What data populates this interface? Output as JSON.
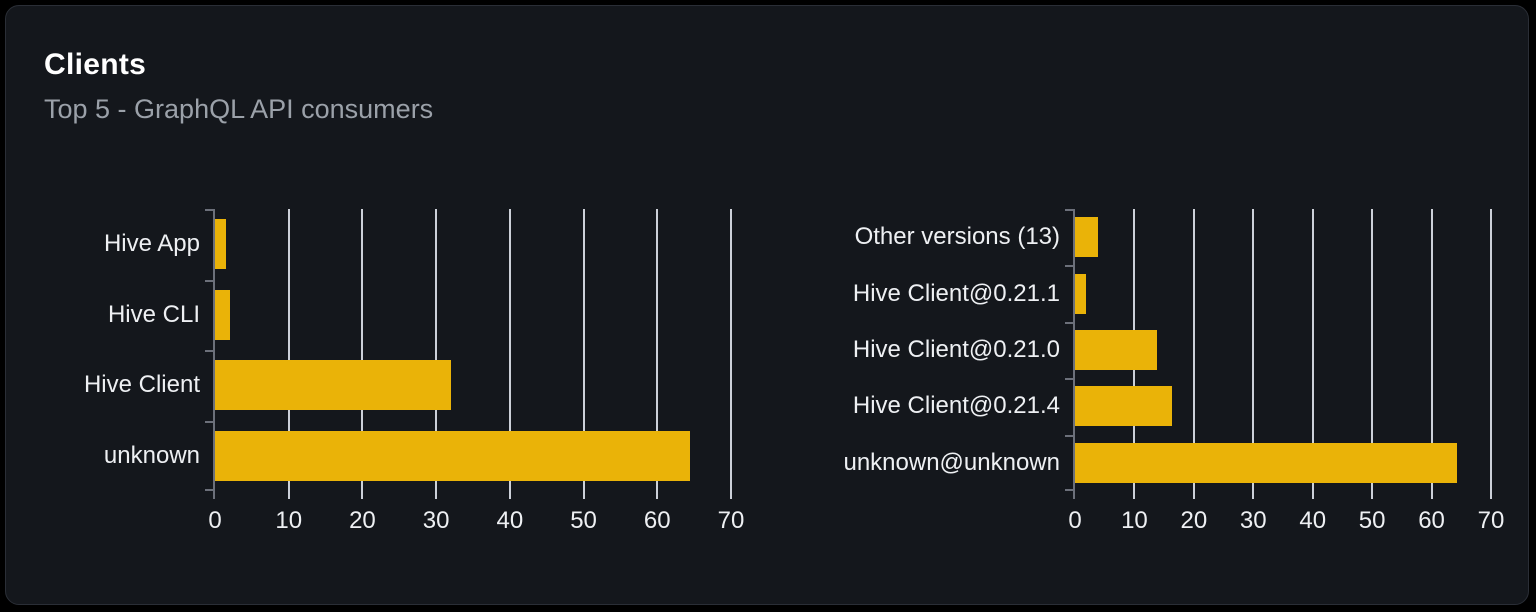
{
  "card": {
    "title": "Clients",
    "subtitle": "Top 5 - GraphQL API consumers"
  },
  "colors": {
    "page_bg": "#000000",
    "card_bg": "#14171c",
    "card_border": "#2a2e36",
    "bar": "#eab308",
    "gridline": "#ccd0d8",
    "axis": "#6c707a",
    "axis_text": "#eef0f3",
    "title_text": "#ffffff",
    "subtitle_text": "#9ba1a9"
  },
  "chart_data": [
    {
      "type": "bar",
      "orientation": "horizontal",
      "title": "",
      "categories": [
        "Hive App",
        "Hive CLI",
        "Hive Client",
        "unknown"
      ],
      "values": [
        1.5,
        2.1,
        32,
        64.5
      ],
      "xlabel": "",
      "ylabel": "",
      "xlim": [
        0,
        70
      ],
      "xticks": [
        0,
        10,
        20,
        30,
        40,
        50,
        60,
        70
      ],
      "grid": true,
      "legend": false
    },
    {
      "type": "bar",
      "orientation": "horizontal",
      "title": "",
      "categories": [
        "Other versions (13)",
        "Hive Client@0.21.1",
        "Hive Client@0.21.0",
        "Hive Client@0.21.4",
        "unknown@unknown"
      ],
      "values": [
        3.8,
        1.8,
        13.8,
        16.3,
        64.3
      ],
      "xlabel": "",
      "ylabel": "",
      "xlim": [
        0,
        70
      ],
      "xticks": [
        0,
        10,
        20,
        30,
        40,
        50,
        60,
        70
      ],
      "grid": true,
      "legend": false
    }
  ]
}
